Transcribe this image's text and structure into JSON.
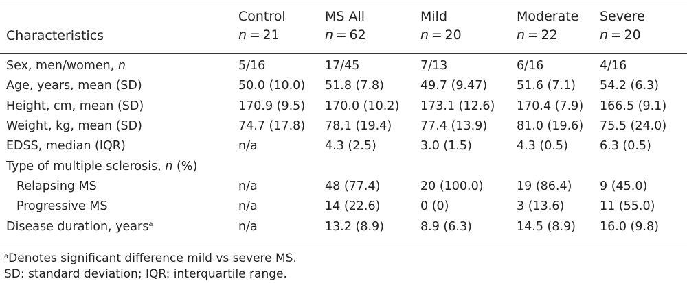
{
  "table": {
    "header": {
      "characteristics_label": "Characteristics",
      "columns": [
        {
          "label": "Control",
          "n_symbol": "n",
          "n_text": " = 21"
        },
        {
          "label": "MS All",
          "n_symbol": "n",
          "n_text": " = 62"
        },
        {
          "label": "Mild",
          "n_symbol": "n",
          "n_text": " = 20"
        },
        {
          "label": "Moderate",
          "n_symbol": "n",
          "n_text": " = 22"
        },
        {
          "label": "Severe",
          "n_symbol": "n",
          "n_text": " = 20"
        }
      ]
    },
    "rows": [
      {
        "label": "Sex, men/women, ",
        "label_italic": "n",
        "values": [
          "5/16",
          "17/45",
          "7/13",
          "6/16",
          "4/16"
        ]
      },
      {
        "label": "Age, years, mean (SD)",
        "values": [
          "50.0 (10.0)",
          "51.8 (7.8)",
          "49.7 (9.47)",
          "51.6 (7.1)",
          "54.2 (6.3)"
        ]
      },
      {
        "label": "Height, cm, mean (SD)",
        "values": [
          "170.9 (9.5)",
          "170.0 (10.2)",
          "173.1 (12.6)",
          "170.4 (7.9)",
          "166.5 (9.1)"
        ]
      },
      {
        "label": "Weight, kg, mean (SD)",
        "values": [
          "74.7 (17.8)",
          "78.1 (19.4)",
          "77.4 (13.9)",
          "81.0 (19.6)",
          "75.5 (24.0)"
        ]
      },
      {
        "label": "EDSS, median (IQR)",
        "values": [
          "n/a",
          "4.3 (2.5)",
          "3.0 (1.5)",
          "4.3 (0.5)",
          "6.3 (0.5)"
        ]
      },
      {
        "label": "Type of multiple sclerosis, ",
        "label_italic": "n",
        "label_suffix": " (%)",
        "values": [
          "",
          "",
          "",
          "",
          ""
        ]
      },
      {
        "label": "Relapsing MS",
        "sub": true,
        "values": [
          "n/a",
          "48 (77.4)",
          "20 (100.0)",
          "19 (86.4)",
          "9 (45.0)"
        ]
      },
      {
        "label": "Progressive MS",
        "sub": true,
        "values": [
          "n/a",
          "14 (22.6)",
          "0 (0)",
          "3 (13.6)",
          "11 (55.0)"
        ]
      },
      {
        "label": "Disease duration, years",
        "label_sup": "a",
        "values": [
          "n/a",
          "13.2 (8.9)",
          "8.9 (6.3)",
          "14.5 (8.9)",
          "16.0 (9.8)"
        ]
      }
    ]
  },
  "footnotes": {
    "note_a_marker": "a",
    "note_a_text": "Denotes significant difference mild vs severe MS.",
    "abbreviations": "SD: standard deviation; IQR: interquartile range."
  }
}
